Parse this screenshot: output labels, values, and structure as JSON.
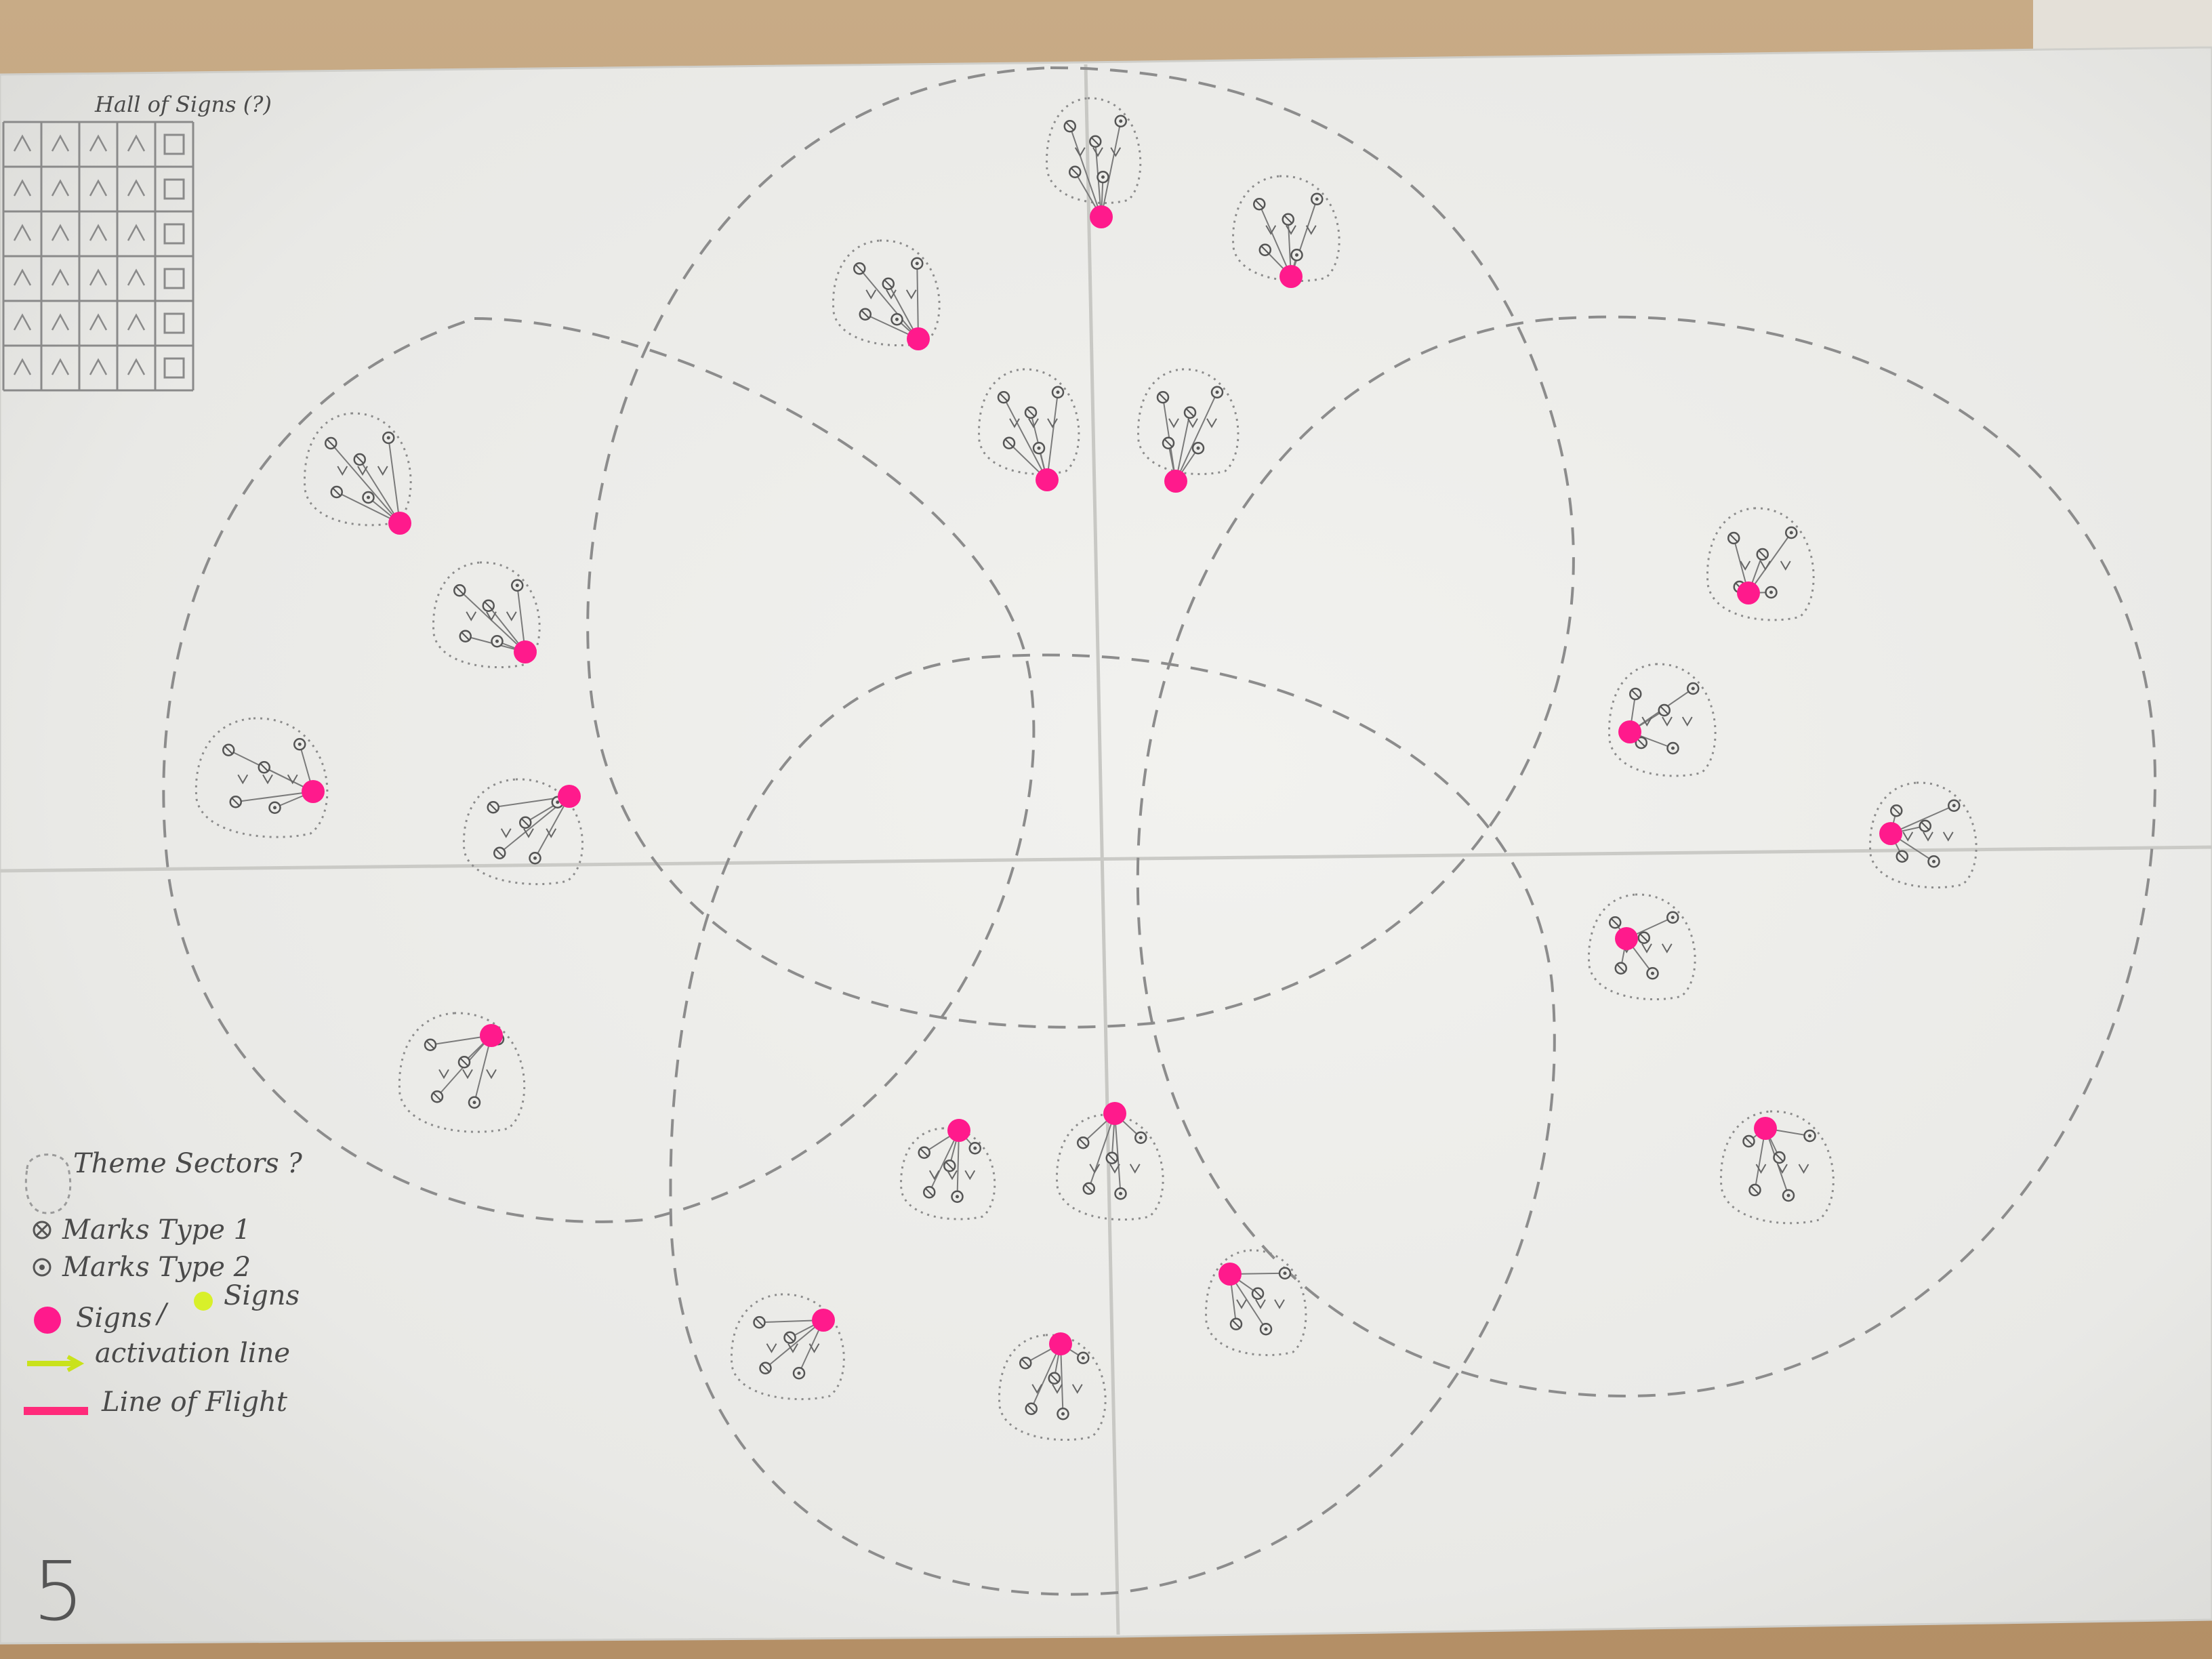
{
  "hall_of_signs": {
    "title": "Hall of Signs (?)"
  },
  "legend": {
    "theme_sectors": "Theme Sectors ?",
    "marks_type_1": "Marks Type 1",
    "marks_type_2": "Marks Type 2",
    "signs_pink": "Signs",
    "slash": "/",
    "signs_yellow": "Signs",
    "activation_line": "activation line",
    "line_of_flight": "Line of Flight"
  },
  "page_number": "5",
  "colors": {
    "sign_pink": "#ff1a8c",
    "sign_yellow": "#d8f02a",
    "activation_line": "#c9e21b",
    "line_of_flight": "#ff2a7a",
    "sector_dash": "#8c8c8c",
    "paper": "#ededea"
  },
  "icons": [
    "circle-x-mark-icon",
    "circle-dot-mark-icon",
    "pink-sign-dot-icon",
    "yellow-sign-dot-icon",
    "arrow-icon"
  ]
}
